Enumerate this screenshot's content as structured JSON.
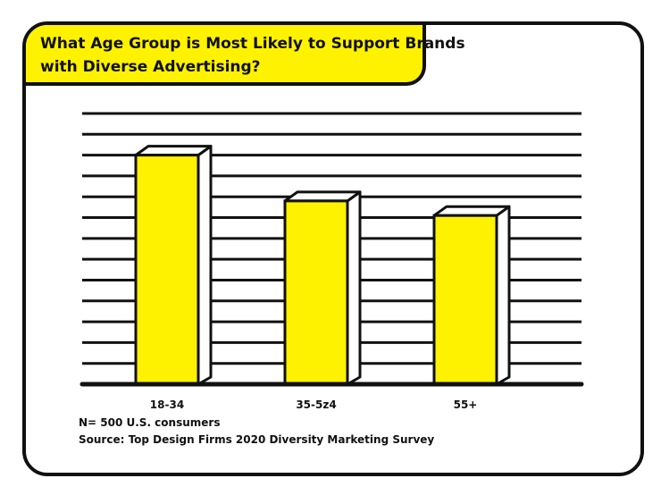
{
  "chart_data": {
    "type": "bar",
    "title": [
      "What Age Group is Most Likely to Support Brands",
      "with Diverse Advertising?"
    ],
    "categories": [
      "18-34",
      "35-5z4",
      "55+"
    ],
    "values": [
      11,
      8.8,
      8.1
    ],
    "ylim": [
      0,
      13
    ],
    "grid": true,
    "notes": [
      "N= 500 U.S. consumers",
      "Source: Top Design Firms 2020 Diversity Marketing Survey"
    ],
    "colors": {
      "bar": "#fff200",
      "outline": "#111111",
      "background": "#ffffff"
    }
  }
}
